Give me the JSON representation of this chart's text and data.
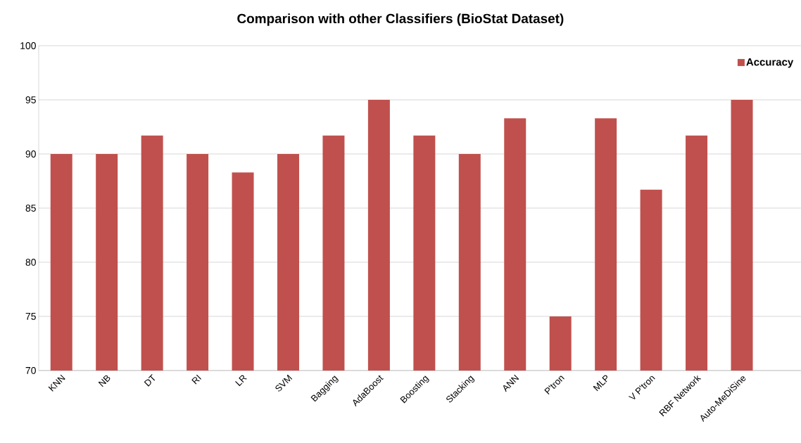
{
  "chart_data": {
    "type": "bar",
    "title": "Comparison with other Classifiers (BioStat Dataset)",
    "categories": [
      "KNN",
      "NB",
      "DT",
      "RI",
      "LR",
      "SVM",
      "Bagging",
      "AdaBoost",
      "Boosting",
      "Stacking",
      "ANN",
      "P'tron",
      "MLP",
      "V P'tron",
      "RBF Network",
      "Auto-MeDiSine"
    ],
    "series": [
      {
        "name": "Accuracy",
        "color": "#c0504d",
        "values": [
          90,
          90,
          91.7,
          90,
          88.3,
          90,
          91.7,
          95,
          91.7,
          90,
          93.3,
          75,
          93.3,
          86.7,
          91.7,
          95
        ]
      }
    ],
    "ylim": [
      70,
      100
    ],
    "yticks": [
      70,
      75,
      80,
      85,
      90,
      95,
      100
    ],
    "grid": "y",
    "legend": "top right"
  }
}
